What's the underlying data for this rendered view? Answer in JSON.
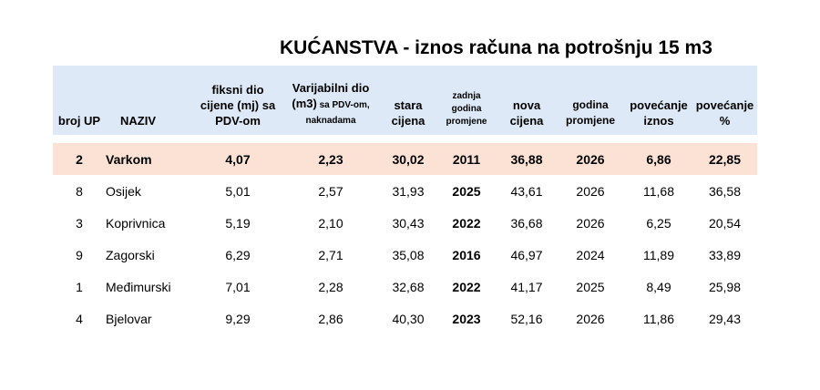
{
  "title": "KUĆANSTVA - iznos računa na potrošnju 15 m3",
  "columns": {
    "broj_up": "broj UP",
    "naziv": "NAZIV",
    "fiksni": [
      "fiksni dio",
      "cijene (mj) sa",
      "PDV-om"
    ],
    "varijabilni_l1": "Varijabilni dio",
    "varijabilni_l2a": "(m3)",
    "varijabilni_l2b": " sa PDV-om,",
    "varijabilni_l3": "naknadama",
    "stara": [
      "stara",
      "cijena"
    ],
    "zadnja": [
      "zadnja",
      "godina",
      "promjene"
    ],
    "nova": [
      "nova",
      "cijena"
    ],
    "godina": [
      "godina",
      "promjene"
    ],
    "pov_iznos": [
      "povećanje",
      "iznos"
    ],
    "pov_pct": [
      "povećanje",
      "%"
    ]
  },
  "rows": [
    {
      "broj": "2",
      "naziv": "Varkom",
      "fiksni": "4,07",
      "varijabilni": "2,23",
      "stara": "30,02",
      "zadnja": "2011",
      "nova": "36,88",
      "godina": "2026",
      "pov_iznos": "6,86",
      "pov_pct": "22,85"
    },
    {
      "broj": "8",
      "naziv": "Osijek",
      "fiksni": "5,01",
      "varijabilni": "2,57",
      "stara": "31,93",
      "zadnja": "2025",
      "nova": "43,61",
      "godina": "2026",
      "pov_iznos": "11,68",
      "pov_pct": "36,58"
    },
    {
      "broj": "3",
      "naziv": "Koprivnica",
      "fiksni": "5,19",
      "varijabilni": "2,10",
      "stara": "30,43",
      "zadnja": "2022",
      "nova": "36,68",
      "godina": "2026",
      "pov_iznos": "6,25",
      "pov_pct": "20,54"
    },
    {
      "broj": "9",
      "naziv": "Zagorski",
      "fiksni": "6,29",
      "varijabilni": "2,71",
      "stara": "35,08",
      "zadnja": "2016",
      "nova": "46,97",
      "godina": "2024",
      "pov_iznos": "11,89",
      "pov_pct": "33,89"
    },
    {
      "broj": "1",
      "naziv": "Međimurski",
      "fiksni": "7,01",
      "varijabilni": "2,28",
      "stara": "32,68",
      "zadnja": "2022",
      "nova": "41,17",
      "godina": "2025",
      "pov_iznos": "8,49",
      "pov_pct": "25,98"
    },
    {
      "broj": "4",
      "naziv": "Bjelovar",
      "fiksni": "9,29",
      "varijabilni": "2,86",
      "stara": "40,30",
      "zadnja": "2023",
      "nova": "52,16",
      "godina": "2026",
      "pov_iznos": "11,86",
      "pov_pct": "29,43"
    }
  ],
  "colors": {
    "header_bg": "#dde9f6",
    "highlight_bg": "#fbe2d5"
  }
}
